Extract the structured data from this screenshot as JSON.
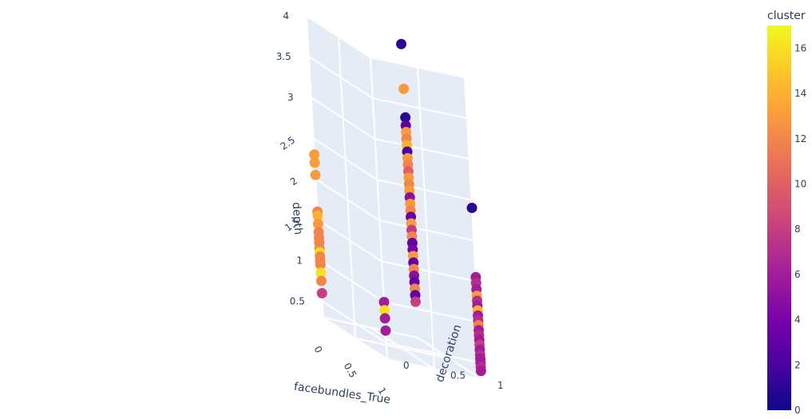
{
  "chart_data": {
    "type": "scatter3d",
    "axes": {
      "x": {
        "title": "facebundles_True",
        "range": [
          0,
          1
        ],
        "ticks": [
          "0",
          "0.5",
          "1"
        ]
      },
      "y": {
        "title": "decoration",
        "range": [
          0,
          1
        ],
        "ticks": [
          "0",
          "0.5",
          "1"
        ]
      },
      "z": {
        "title": "depth",
        "range": [
          0.3,
          4
        ],
        "ticks": [
          "0.5",
          "1",
          "1.5",
          "2",
          "2.5",
          "3",
          "3.5",
          "4"
        ]
      }
    },
    "grid": true,
    "colorbar": {
      "title": "cluster",
      "range": [
        0,
        17
      ],
      "ticks": [
        "0",
        "2",
        "4",
        "6",
        "8",
        "10",
        "12",
        "14",
        "16"
      ],
      "placement": "right"
    },
    "points": [
      {
        "x": 0,
        "y": 0,
        "z": 2.3,
        "c": 13
      },
      {
        "x": 0,
        "y": 0,
        "z": 2.2,
        "c": 13
      },
      {
        "x": 0,
        "y": 0,
        "z": 2.05,
        "c": 13
      },
      {
        "x": 0,
        "y": 0,
        "z": 1.6,
        "c": 12
      },
      {
        "x": 0,
        "y": 0,
        "z": 1.55,
        "c": 14
      },
      {
        "x": 0,
        "y": 0,
        "z": 1.45,
        "c": 13
      },
      {
        "x": 0,
        "y": 0,
        "z": 1.35,
        "c": 12
      },
      {
        "x": 0,
        "y": 0,
        "z": 1.28,
        "c": 12
      },
      {
        "x": 0,
        "y": 0,
        "z": 1.22,
        "c": 12
      },
      {
        "x": 0,
        "y": 0,
        "z": 1.15,
        "c": 12
      },
      {
        "x": 0,
        "y": 0,
        "z": 1.1,
        "c": 16
      },
      {
        "x": 0,
        "y": 0,
        "z": 1.05,
        "c": 12
      },
      {
        "x": 0,
        "y": 0,
        "z": 1.0,
        "c": 12
      },
      {
        "x": 0,
        "y": 0,
        "z": 0.95,
        "c": 12
      },
      {
        "x": 0,
        "y": 0,
        "z": 0.85,
        "c": 16
      },
      {
        "x": 0,
        "y": 0,
        "z": 0.75,
        "c": 12
      },
      {
        "x": 0,
        "y": 0,
        "z": 0.6,
        "c": 8
      },
      {
        "x": 0,
        "y": 1,
        "z": 3.9,
        "c": 1
      },
      {
        "x": 0,
        "y": 1,
        "z": 3.35,
        "c": 13
      },
      {
        "x": 0,
        "y": 1,
        "z": 3.0,
        "c": 1
      },
      {
        "x": 0,
        "y": 1,
        "z": 2.9,
        "c": 3
      },
      {
        "x": 0,
        "y": 1,
        "z": 2.82,
        "c": 13
      },
      {
        "x": 0,
        "y": 1,
        "z": 2.74,
        "c": 12
      },
      {
        "x": 0,
        "y": 1,
        "z": 2.66,
        "c": 14
      },
      {
        "x": 0,
        "y": 1,
        "z": 2.58,
        "c": 2
      },
      {
        "x": 0,
        "y": 1,
        "z": 2.5,
        "c": 13
      },
      {
        "x": 0,
        "y": 1,
        "z": 2.42,
        "c": 12
      },
      {
        "x": 0,
        "y": 1,
        "z": 2.34,
        "c": 10
      },
      {
        "x": 0,
        "y": 1,
        "z": 2.26,
        "c": 13
      },
      {
        "x": 0,
        "y": 1,
        "z": 2.18,
        "c": 12
      },
      {
        "x": 0,
        "y": 1,
        "z": 2.1,
        "c": 13
      },
      {
        "x": 0,
        "y": 1,
        "z": 2.02,
        "c": 5
      },
      {
        "x": 0,
        "y": 1,
        "z": 1.94,
        "c": 13
      },
      {
        "x": 0,
        "y": 1,
        "z": 1.86,
        "c": 12
      },
      {
        "x": 0,
        "y": 1,
        "z": 1.78,
        "c": 3
      },
      {
        "x": 0,
        "y": 1,
        "z": 1.7,
        "c": 13
      },
      {
        "x": 0,
        "y": 1,
        "z": 1.62,
        "c": 8
      },
      {
        "x": 0,
        "y": 1,
        "z": 1.54,
        "c": 12
      },
      {
        "x": 0,
        "y": 1,
        "z": 1.46,
        "c": 3
      },
      {
        "x": 0,
        "y": 1,
        "z": 1.38,
        "c": 4
      },
      {
        "x": 0,
        "y": 1,
        "z": 1.3,
        "c": 13
      },
      {
        "x": 0,
        "y": 1,
        "z": 1.22,
        "c": 3
      },
      {
        "x": 0,
        "y": 1,
        "z": 1.14,
        "c": 12
      },
      {
        "x": 0,
        "y": 1,
        "z": 1.06,
        "c": 5
      },
      {
        "x": 0,
        "y": 1,
        "z": 0.98,
        "c": 3
      },
      {
        "x": 0,
        "y": 1,
        "z": 0.9,
        "c": 12
      },
      {
        "x": 0,
        "y": 1,
        "z": 0.82,
        "c": 3
      },
      {
        "x": 0,
        "y": 1,
        "z": 0.74,
        "c": 8
      },
      {
        "x": 1,
        "y": 0,
        "z": 1.0,
        "c": 6
      },
      {
        "x": 1,
        "y": 0,
        "z": 0.9,
        "c": 16
      },
      {
        "x": 1,
        "y": 0,
        "z": 0.8,
        "c": 6
      },
      {
        "x": 1,
        "y": 0,
        "z": 0.65,
        "c": 6
      },
      {
        "x": 1,
        "y": 1,
        "z": 2.4,
        "c": 1
      },
      {
        "x": 1,
        "y": 1,
        "z": 1.55,
        "c": 6
      },
      {
        "x": 1,
        "y": 1,
        "z": 1.48,
        "c": 7
      },
      {
        "x": 1,
        "y": 1,
        "z": 1.4,
        "c": 6
      },
      {
        "x": 1,
        "y": 1,
        "z": 1.32,
        "c": 13
      },
      {
        "x": 1,
        "y": 1,
        "z": 1.26,
        "c": 7
      },
      {
        "x": 1,
        "y": 1,
        "z": 1.2,
        "c": 6
      },
      {
        "x": 1,
        "y": 1,
        "z": 1.14,
        "c": 14
      },
      {
        "x": 1,
        "y": 1,
        "z": 1.08,
        "c": 6
      },
      {
        "x": 1,
        "y": 1,
        "z": 1.02,
        "c": 7
      },
      {
        "x": 1,
        "y": 1,
        "z": 0.96,
        "c": 12
      },
      {
        "x": 1,
        "y": 1,
        "z": 0.9,
        "c": 6
      },
      {
        "x": 1,
        "y": 1,
        "z": 0.84,
        "c": 7
      },
      {
        "x": 1,
        "y": 1,
        "z": 0.78,
        "c": 6
      },
      {
        "x": 1,
        "y": 1,
        "z": 0.72,
        "c": 8
      },
      {
        "x": 1,
        "y": 1,
        "z": 0.66,
        "c": 6
      },
      {
        "x": 1,
        "y": 1,
        "z": 0.6,
        "c": 7
      },
      {
        "x": 1,
        "y": 1,
        "z": 0.55,
        "c": 6
      },
      {
        "x": 1,
        "y": 1,
        "z": 0.5,
        "c": 6
      },
      {
        "x": 1,
        "y": 1,
        "z": 0.45,
        "c": 7
      },
      {
        "x": 1,
        "y": 1,
        "z": 0.4,
        "c": 6
      }
    ]
  }
}
